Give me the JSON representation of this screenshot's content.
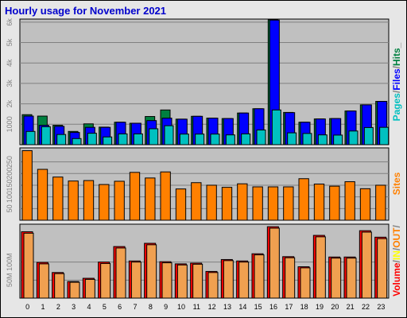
{
  "title": "Hourly usage for November 2021",
  "chart_data": [
    {
      "type": "bar",
      "panel": "top",
      "categories": [
        "0",
        "1",
        "2",
        "3",
        "4",
        "5",
        "6",
        "7",
        "8",
        "9",
        "10",
        "11",
        "12",
        "13",
        "14",
        "15",
        "16",
        "17",
        "18",
        "19",
        "20",
        "21",
        "22",
        "23"
      ],
      "series": [
        {
          "name": "Pages",
          "color": "#00c0c0",
          "values": [
            650,
            880,
            500,
            300,
            560,
            380,
            530,
            530,
            780,
            930,
            520,
            520,
            520,
            480,
            530,
            720,
            1700,
            580,
            550,
            480,
            470,
            670,
            840,
            850
          ]
        },
        {
          "name": "Files",
          "color": "#0000ff",
          "values": [
            1400,
            950,
            900,
            600,
            850,
            850,
            1100,
            1050,
            1180,
            1300,
            1250,
            1390,
            1300,
            1280,
            1550,
            1760,
            6100,
            1570,
            1100,
            1260,
            1280,
            1650,
            1950,
            2120
          ]
        },
        {
          "name": "Hits",
          "color": "#008040",
          "values": [
            1470,
            1400,
            950,
            650,
            1020,
            860,
            1100,
            1050,
            1380,
            1700,
            1250,
            1390,
            1300,
            1280,
            1550,
            1760,
            6120,
            1580,
            1100,
            1260,
            1280,
            1650,
            1950,
            2120
          ]
        }
      ],
      "yticks": [
        "1000",
        "2k",
        "3k",
        "4k",
        "5k",
        "6k"
      ],
      "ylim": [
        0,
        6150
      ],
      "side_label": [
        {
          "text": "Pages",
          "color": "#00c0c0"
        },
        {
          "text": "/",
          "color": "#808080"
        },
        {
          "text": "Files",
          "color": "#0000ff"
        },
        {
          "text": "/",
          "color": "#808080"
        },
        {
          "text": "Hits",
          "color": "#008040"
        },
        {
          "text": "_",
          "color": "#808080"
        }
      ]
    },
    {
      "type": "bar",
      "panel": "middle",
      "categories": [
        "0",
        "1",
        "2",
        "3",
        "4",
        "5",
        "6",
        "7",
        "8",
        "9",
        "10",
        "11",
        "12",
        "13",
        "14",
        "15",
        "16",
        "17",
        "18",
        "19",
        "20",
        "21",
        "22",
        "23"
      ],
      "series": [
        {
          "name": "Sites",
          "color": "#ff8000",
          "values": [
            298,
            218,
            185,
            168,
            170,
            153,
            167,
            205,
            181,
            207,
            134,
            161,
            150,
            141,
            156,
            143,
            143,
            143,
            178,
            155,
            146,
            165,
            135,
            150
          ]
        }
      ],
      "yticks": [
        "50",
        "100",
        "150",
        "200",
        "250"
      ],
      "ylim": [
        0,
        310
      ],
      "side_label": [
        {
          "text": "Sites",
          "color": "#ff8000"
        }
      ]
    },
    {
      "type": "bar",
      "panel": "bottom",
      "categories": [
        "0",
        "1",
        "2",
        "3",
        "4",
        "5",
        "6",
        "7",
        "8",
        "9",
        "10",
        "11",
        "12",
        "13",
        "14",
        "15",
        "16",
        "17",
        "18",
        "19",
        "20",
        "21",
        "22",
        "23"
      ],
      "series": [
        {
          "name": "Volume",
          "color": "#ff0000",
          "values": [
            184,
            99,
            71,
            46,
            55,
            100,
            143,
            103,
            152,
            101,
            95,
            97,
            74,
            107,
            103,
            123,
            198,
            115,
            87,
            174,
            114,
            114,
            187,
            169
          ]
        },
        {
          "name": "IN",
          "color": "#ffff00",
          "values": [
            180,
            95,
            68,
            44,
            52,
            96,
            139,
            100,
            148,
            98,
            92,
            94,
            71,
            104,
            100,
            120,
            194,
            112,
            84,
            170,
            111,
            111,
            183,
            165
          ]
        },
        {
          "name": "OUT",
          "color": "#ff8000",
          "values": [
            180,
            95,
            68,
            44,
            52,
            96,
            139,
            100,
            148,
            98,
            92,
            94,
            71,
            104,
            100,
            120,
            194,
            112,
            84,
            170,
            111,
            111,
            183,
            165
          ]
        }
      ],
      "yticks": [
        "50M",
        "100M"
      ],
      "ylim": [
        0,
        205
      ],
      "side_label": [
        {
          "text": "Volume",
          "color": "#ff0000"
        },
        {
          "text": "/",
          "color": "#808080"
        },
        {
          "text": "IN",
          "color": "#ffff00"
        },
        {
          "text": "/",
          "color": "#808080"
        },
        {
          "text": "OUT",
          "color": "#ff8000"
        },
        {
          "text": "/",
          "color": "#808080"
        }
      ]
    }
  ]
}
